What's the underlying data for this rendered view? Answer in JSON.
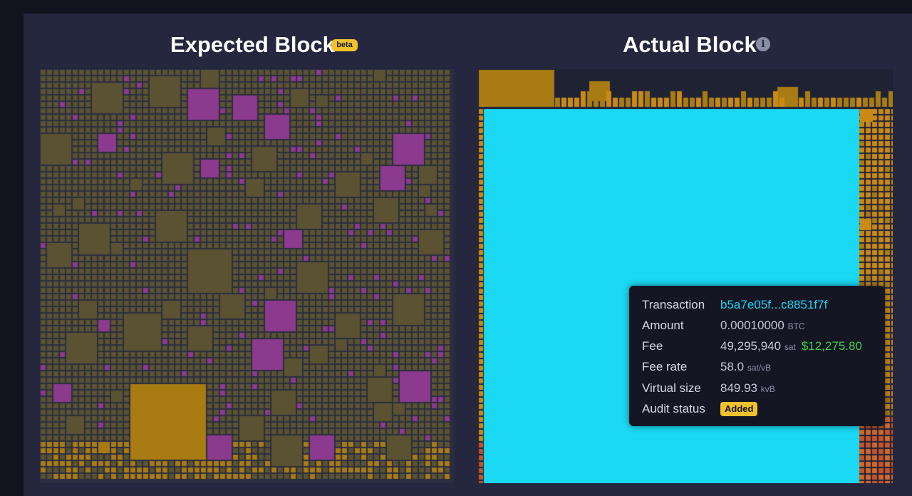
{
  "expected": {
    "title": "Expected Block",
    "badge": "beta"
  },
  "actual": {
    "title": "Actual Block",
    "info_icon": "i"
  },
  "colors": {
    "page_bg": "#11131f",
    "panel_bg": "#24273e",
    "tile_olive": "#5b5232",
    "tile_magenta": "#8b3a8e",
    "tile_gold": "#a87c12",
    "tile_orange": "#c98a14",
    "highlight": "#1bd9f5"
  },
  "tooltip": {
    "transaction_label": "Transaction",
    "transaction_value": "b5a7e05f...c8851f7f",
    "amount_label": "Amount",
    "amount_value": "0.00010000",
    "amount_unit": "BTC",
    "fee_label": "Fee",
    "fee_value": "49,295,940",
    "fee_unit": "sat",
    "fee_fiat": "$12,275.80",
    "feerate_label": "Fee rate",
    "feerate_value": "58.0",
    "feerate_unit": "sat/vB",
    "vsize_label": "Virtual size",
    "vsize_value": "849.93",
    "vsize_unit": "kvB",
    "audit_label": "Audit status",
    "audit_value": "Added"
  }
}
